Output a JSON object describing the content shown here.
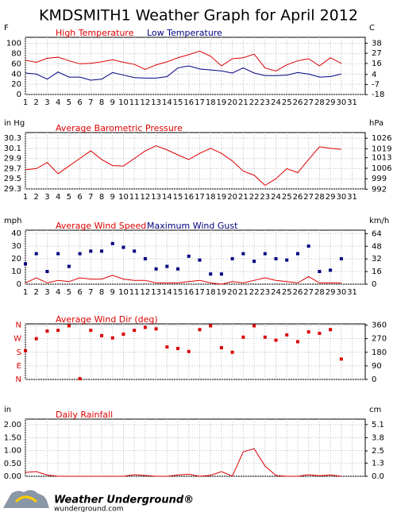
{
  "title": "KMDSMITH1 Weather Graph for April 2012",
  "chart_data": [
    {
      "type": "line",
      "ylabel": "F",
      "y2label": "C",
      "grid": true,
      "xtick_labels": true,
      "x": [
        1,
        2,
        3,
        4,
        5,
        6,
        7,
        8,
        9,
        10,
        11,
        12,
        13,
        14,
        15,
        16,
        17,
        18,
        19,
        20,
        21,
        22,
        23,
        24,
        25,
        26,
        27,
        28,
        29,
        30
      ],
      "xlim": [
        1,
        32.2
      ],
      "xticks": [
        1,
        2,
        3,
        4,
        5,
        6,
        7,
        8,
        9,
        10,
        11,
        12,
        13,
        14,
        15,
        16,
        17,
        18,
        19,
        20,
        21,
        22,
        23,
        24,
        25,
        26,
        27,
        28,
        29,
        30,
        31
      ],
      "ylim": [
        0,
        112
      ],
      "yticks": [
        0,
        20,
        40,
        60,
        80,
        100
      ],
      "y2lim": [
        -17.8,
        44.4
      ],
      "y2ticks": [
        -18,
        -7,
        4,
        16,
        27,
        38
      ],
      "series": [
        {
          "name": "High Temperature",
          "color": "#dd0000",
          "values": [
            67,
            63,
            71,
            73,
            66,
            60,
            61,
            64,
            68,
            63,
            59,
            49,
            58,
            64,
            72,
            78,
            85,
            75,
            56,
            70,
            72,
            79,
            52,
            46,
            58,
            66,
            70,
            56,
            72,
            61
          ]
        },
        {
          "name": "Low Temperature",
          "color": "#000080",
          "values": [
            42,
            40,
            30,
            44,
            34,
            34,
            28,
            30,
            43,
            38,
            33,
            32,
            32,
            35,
            52,
            56,
            50,
            48,
            46,
            42,
            52,
            42,
            37,
            37,
            38,
            43,
            40,
            34,
            35,
            40
          ]
        }
      ]
    },
    {
      "type": "line",
      "ylabel": "in Hg",
      "y2label": "hPa",
      "grid": true,
      "xtick_labels": true,
      "x": [
        1,
        2,
        3,
        4,
        5,
        6,
        7,
        8,
        9,
        10,
        11,
        12,
        13,
        14,
        15,
        16,
        17,
        18,
        19,
        20,
        21,
        22,
        23,
        24,
        25,
        26,
        27,
        28,
        29,
        30
      ],
      "xlim": [
        1,
        32.2
      ],
      "xticks": [
        1,
        2,
        3,
        4,
        5,
        6,
        7,
        8,
        9,
        10,
        11,
        12,
        13,
        14,
        15,
        16,
        17,
        18,
        19,
        20,
        21,
        22,
        23,
        24,
        25,
        26,
        27,
        28,
        29,
        30,
        31
      ],
      "ylim": [
        29.3,
        30.41
      ],
      "yticks": [
        29.3,
        29.5,
        29.7,
        29.9,
        30.1,
        30.3
      ],
      "y2lim": [
        992.2,
        1029.8
      ],
      "y2ticks": [
        992,
        999,
        1006,
        1013,
        1019,
        1026
      ],
      "series": [
        {
          "name": "Average Barometric Pressure",
          "color": "#dd0000",
          "values": [
            29.68,
            29.7,
            29.82,
            29.6,
            29.75,
            29.9,
            30.05,
            29.88,
            29.76,
            29.75,
            29.9,
            30.05,
            30.15,
            30.07,
            29.97,
            29.88,
            30.0,
            30.1,
            30.0,
            29.85,
            29.65,
            29.57,
            29.37,
            29.5,
            29.7,
            29.62,
            29.88,
            30.13,
            30.1,
            30.08
          ]
        }
      ]
    },
    {
      "type": "line",
      "ylabel": "mph",
      "y2label": "km/h",
      "grid": true,
      "xtick_labels": true,
      "x": [
        1,
        2,
        3,
        4,
        5,
        6,
        7,
        8,
        9,
        10,
        11,
        12,
        13,
        14,
        15,
        16,
        17,
        18,
        19,
        20,
        21,
        22,
        23,
        24,
        25,
        26,
        27,
        28,
        29,
        30
      ],
      "xlim": [
        1,
        32.2
      ],
      "xticks": [
        1,
        2,
        3,
        4,
        5,
        6,
        7,
        8,
        9,
        10,
        11,
        12,
        13,
        14,
        15,
        16,
        17,
        18,
        19,
        20,
        21,
        22,
        23,
        24,
        25,
        26,
        27,
        28,
        29,
        30,
        31
      ],
      "ylim": [
        0,
        42.5
      ],
      "yticks": [
        0,
        10,
        20,
        30,
        40
      ],
      "y2lim": [
        0,
        68.4
      ],
      "y2ticks": [
        0,
        16,
        32,
        48,
        64
      ],
      "series": [
        {
          "name": "Average Wind Speed",
          "color": "#dd0000",
          "kind": "line",
          "values": [
            1,
            5,
            1,
            3,
            2,
            5,
            4,
            4,
            7,
            4,
            3,
            3,
            1,
            1,
            1,
            2,
            3,
            1,
            0,
            2,
            1,
            3,
            5,
            3,
            2,
            1,
            6,
            1,
            1,
            1
          ]
        },
        {
          "name": "Maximum Wind Gust",
          "color": "#000080",
          "kind": "scatter",
          "values": [
            16,
            24,
            10,
            24,
            14,
            24,
            26,
            26,
            32,
            29,
            26,
            20,
            12,
            14,
            12,
            22,
            19,
            8,
            8,
            20,
            24,
            18,
            24,
            20,
            19,
            24,
            30,
            10,
            11,
            20
          ]
        }
      ]
    },
    {
      "type": "scatter",
      "y2label": "",
      "grid": true,
      "xtick_labels": false,
      "ytick_color": "#dd0000",
      "x": [
        1,
        2,
        3,
        4,
        5,
        6,
        7,
        8,
        9,
        10,
        11,
        12,
        13,
        14,
        15,
        16,
        17,
        18,
        19,
        20,
        21,
        22,
        23,
        24,
        25,
        26,
        27,
        28,
        29,
        30
      ],
      "xlim": [
        1,
        32.2
      ],
      "xticks": [
        1,
        2,
        3,
        4,
        5,
        6,
        7,
        8,
        9,
        10,
        11,
        12,
        13,
        14,
        15,
        16,
        17,
        18,
        19,
        20,
        21,
        22,
        23,
        24,
        25,
        26,
        27,
        28,
        29,
        30,
        31
      ],
      "ylim": [
        0,
        368
      ],
      "yticks": [
        {
          "value": 0,
          "label": "N"
        },
        {
          "value": 90,
          "label": "E"
        },
        {
          "value": 180,
          "label": "S"
        },
        {
          "value": 270,
          "label": "W"
        },
        {
          "value": 360,
          "label": "N"
        }
      ],
      "y2lim": [
        0,
        368
      ],
      "y2ticks": [
        0,
        90,
        180,
        270,
        360
      ],
      "series": [
        {
          "name": "Average Wind Dir (deg)",
          "color": "#dd0000",
          "values": [
            190,
            270,
            320,
            325,
            355,
            5,
            325,
            290,
            275,
            300,
            325,
            345,
            335,
            215,
            205,
            185,
            330,
            355,
            210,
            180,
            280,
            355,
            280,
            260,
            295,
            250,
            315,
            305,
            330,
            135
          ]
        }
      ]
    },
    {
      "type": "line",
      "ylabel": "in",
      "y2label": "cm",
      "grid": true,
      "xtick_labels": false,
      "x": [
        1,
        2,
        3,
        4,
        5,
        6,
        7,
        8,
        9,
        10,
        11,
        12,
        13,
        14,
        15,
        16,
        17,
        18,
        19,
        20,
        21,
        22,
        23,
        24,
        25,
        26,
        27,
        28,
        29,
        30
      ],
      "xlim": [
        1,
        32.2
      ],
      "xticks": [
        1,
        2,
        3,
        4,
        5,
        6,
        7,
        8,
        9,
        10,
        11,
        12,
        13,
        14,
        15,
        16,
        17,
        18,
        19,
        20,
        21,
        22,
        23,
        24,
        25,
        26,
        27,
        28,
        29,
        30,
        31
      ],
      "ylim": [
        0,
        2.22
      ],
      "yticks": [
        {
          "value": 0,
          "label": "0.00"
        },
        {
          "value": 0.5,
          "label": "0.50"
        },
        {
          "value": 1,
          "label": "1.00"
        },
        {
          "value": 1.5,
          "label": "1.50"
        },
        {
          "value": 2,
          "label": "2.00"
        }
      ],
      "y2lim": [
        0,
        5.64
      ],
      "y2ticks": [
        {
          "value": 0,
          "label": "0.0"
        },
        1.3,
        2.5,
        3.8,
        5.1
      ],
      "series": [
        {
          "name": "Daily Rainfall",
          "color": "#dd0000",
          "values": [
            0.15,
            0.18,
            0.05,
            0,
            0,
            0,
            0,
            0,
            0,
            0,
            0.06,
            0.03,
            0,
            0,
            0.05,
            0.08,
            0,
            0.04,
            0.18,
            0.01,
            0.95,
            1.07,
            0.4,
            0.03,
            0,
            0,
            0.06,
            0.02,
            0.05,
            0
          ]
        }
      ]
    }
  ],
  "footer": {
    "brand": "Weather Underground®",
    "url": "wunderground.com"
  }
}
